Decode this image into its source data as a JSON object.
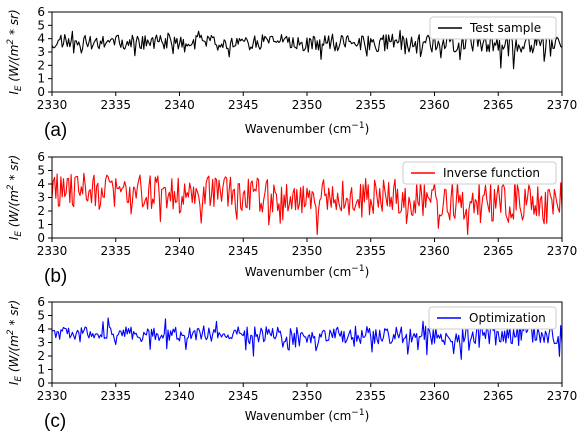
{
  "chart_data": [
    {
      "type": "line",
      "panel_label": "(a)",
      "series": [
        {
          "name": "Test sample",
          "color": "#000000",
          "seed": 11,
          "base": [
            3.75,
            3.65
          ],
          "amp": [
            0.5,
            0.75
          ],
          "extra_amp": 1.0
        }
      ],
      "xlabel": "Wavenumber (cm",
      "xlabel_sup": "−1",
      "xlabel_close": ")",
      "ylabel": "I",
      "ylabel_sub": "E",
      "ylabel_rest": " (W/(m",
      "ylabel_sup": "2",
      "ylabel_end": " * sr)",
      "xlim": [
        2330,
        2370
      ],
      "ylim": [
        0,
        6
      ],
      "xticks": [
        2330,
        2335,
        2340,
        2345,
        2350,
        2355,
        2360,
        2365,
        2370
      ],
      "yticks": [
        0,
        1,
        2,
        3,
        4,
        5,
        6
      ],
      "legend_position": "top-right",
      "grid": false
    },
    {
      "type": "line",
      "panel_label": "(b)",
      "series": [
        {
          "name": "Inverse function",
          "color": "#ff0000",
          "seed": 29,
          "base": [
            3.6,
            2.6
          ],
          "amp": [
            1.3,
            1.6
          ],
          "extra_amp": 1.4
        }
      ],
      "xlabel": "Wavenumber (cm",
      "xlabel_sup": "−1",
      "xlabel_close": ")",
      "ylabel": "I",
      "ylabel_sub": "E",
      "ylabel_rest": " (W/(m",
      "ylabel_sup": "2",
      "ylabel_end": " * sr)",
      "xlim": [
        2330,
        2370
      ],
      "ylim": [
        0,
        6
      ],
      "xticks": [
        2330,
        2335,
        2340,
        2345,
        2350,
        2355,
        2360,
        2365,
        2370
      ],
      "yticks": [
        0,
        1,
        2,
        3,
        4,
        5,
        6
      ],
      "legend_position": "top-right",
      "grid": false
    },
    {
      "type": "line",
      "panel_label": "(c)",
      "series": [
        {
          "name": "Optimization",
          "color": "#0000ff",
          "seed": 47,
          "base": [
            3.7,
            3.5
          ],
          "amp": [
            0.45,
            0.8
          ],
          "extra_amp": 1.1
        }
      ],
      "xlabel": "Wavenumber (cm",
      "xlabel_sup": "−1",
      "xlabel_close": ")",
      "ylabel": "I",
      "ylabel_sub": "E",
      "ylabel_rest": " (W/(m",
      "ylabel_sup": "2",
      "ylabel_end": " * sr)",
      "xlim": [
        2330,
        2370
      ],
      "ylim": [
        0,
        6
      ],
      "xticks": [
        2330,
        2335,
        2340,
        2345,
        2350,
        2355,
        2360,
        2365,
        2370
      ],
      "yticks": [
        0,
        1,
        2,
        3,
        4,
        5,
        6
      ],
      "legend_position": "top-right",
      "grid": false
    }
  ]
}
